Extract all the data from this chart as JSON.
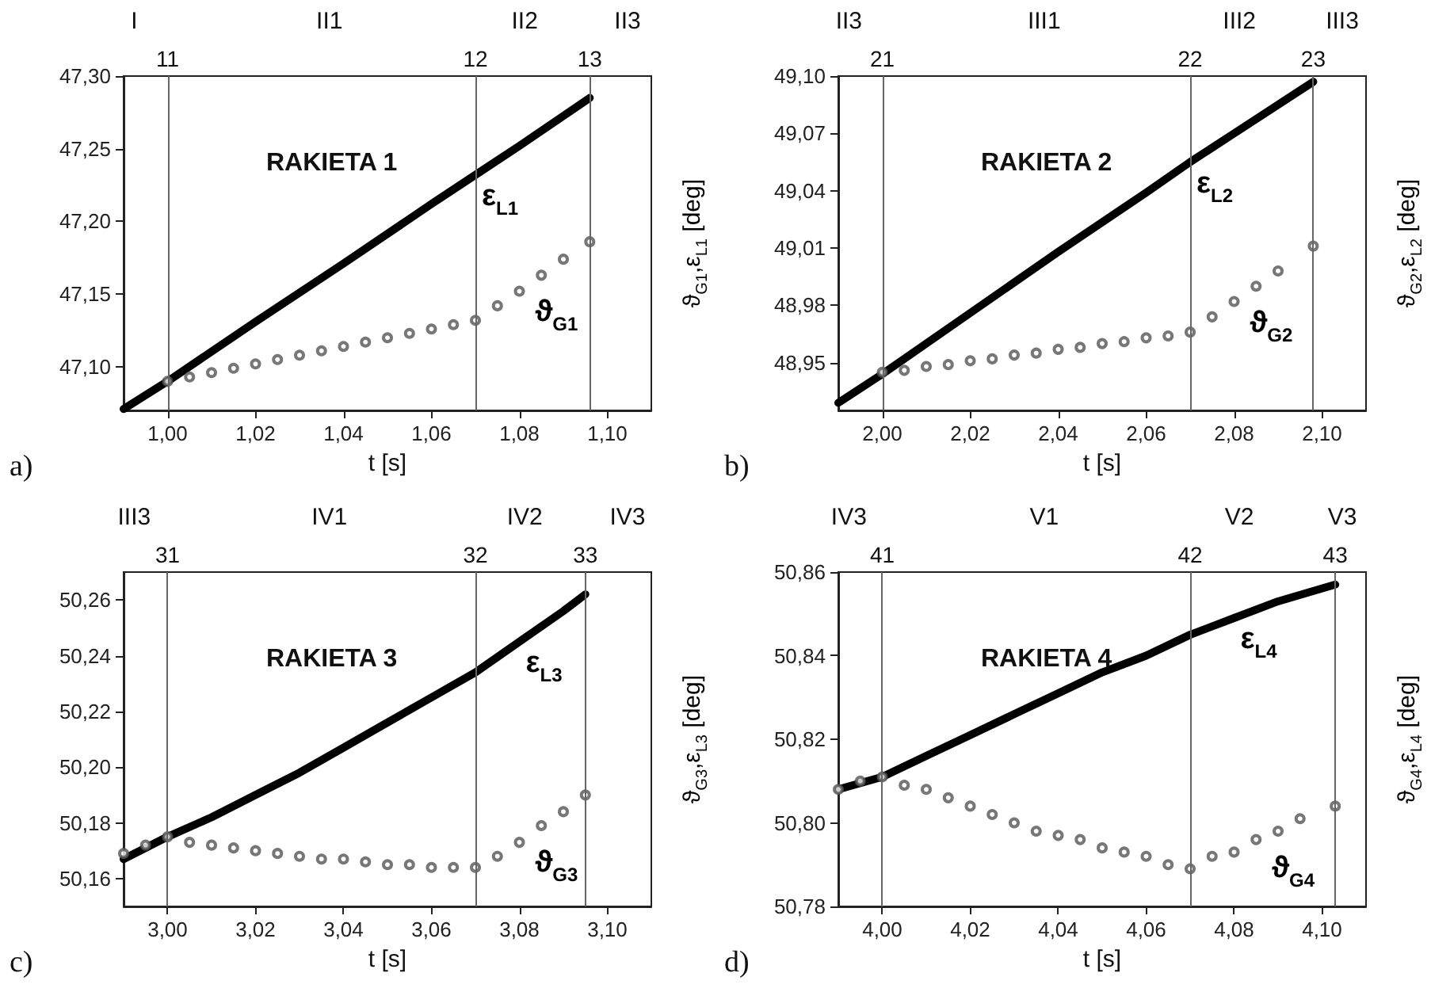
{
  "chart_data": [
    {
      "type": "line",
      "title": "RAKIETA 1",
      "xlabel": "t [s]",
      "ylabel": "ϑ$_{G1}$,ε$_{L1}$ [deg]",
      "xlim": [
        0.99,
        1.11
      ],
      "xticks": [
        {
          "value": 1.0,
          "label": "1,00"
        },
        {
          "value": 1.02,
          "label": "1,02"
        },
        {
          "value": 1.04,
          "label": "1,04"
        },
        {
          "value": 1.06,
          "label": "1,06"
        },
        {
          "value": 1.08,
          "label": "1,08"
        },
        {
          "value": 1.1,
          "label": "1,10"
        }
      ],
      "ylim": [
        47.07,
        47.3
      ],
      "yticks": [
        {
          "value": 47.1,
          "label": "47,10"
        },
        {
          "value": 47.15,
          "label": "47,15"
        },
        {
          "value": 47.2,
          "label": "47,20"
        },
        {
          "value": 47.25,
          "label": "47,25"
        },
        {
          "value": 47.3,
          "label": "47,30"
        }
      ],
      "ref_lines": [
        {
          "axis": "x",
          "value": 1.0
        },
        {
          "axis": "x",
          "value": 1.07
        },
        {
          "axis": "x",
          "value": 1.096
        }
      ],
      "annotations": [
        "a)",
        "I",
        "II1",
        "II2",
        "II3",
        "11",
        "12",
        "13"
      ],
      "series": [
        {
          "name": "ε$_{L1}$",
          "marker": "none",
          "color": "#000000",
          "x": [
            0.99,
            1.0,
            1.02,
            1.04,
            1.06,
            1.07,
            1.08,
            1.096
          ],
          "values": [
            47.071,
            47.09,
            47.131,
            47.171,
            47.212,
            47.232,
            47.252,
            47.285
          ]
        },
        {
          "name": "ϑ$_{G1}$",
          "type": "scatter",
          "marker": "circle",
          "color": "#555555",
          "x": [
            1.0,
            1.005,
            1.01,
            1.015,
            1.02,
            1.025,
            1.03,
            1.035,
            1.04,
            1.045,
            1.05,
            1.055,
            1.06,
            1.065,
            1.07,
            1.075,
            1.08,
            1.085,
            1.09,
            1.096
          ],
          "values": [
            47.09,
            47.093,
            47.096,
            47.099,
            47.102,
            47.105,
            47.108,
            47.111,
            47.114,
            47.117,
            47.12,
            47.123,
            47.126,
            47.129,
            47.132,
            47.142,
            47.152,
            47.163,
            47.174,
            47.186
          ]
        }
      ]
    },
    {
      "type": "line",
      "title": "RAKIETA 2",
      "xlabel": "t [s]",
      "ylabel": "ϑ$_{G2}$,ε$_{L2}$ [deg]",
      "xlim": [
        1.99,
        2.11
      ],
      "xticks": [
        {
          "value": 2.0,
          "label": "2,00"
        },
        {
          "value": 2.02,
          "label": "2,02"
        },
        {
          "value": 2.04,
          "label": "2,04"
        },
        {
          "value": 2.06,
          "label": "2,06"
        },
        {
          "value": 2.08,
          "label": "2,08"
        },
        {
          "value": 2.1,
          "label": "2,10"
        }
      ],
      "ylim": [
        48.925,
        49.1
      ],
      "yticks": [
        {
          "value": 48.95,
          "label": "48,95"
        },
        {
          "value": 48.98,
          "label": "48,98"
        },
        {
          "value": 49.01,
          "label": "49,01"
        },
        {
          "value": 49.04,
          "label": "49,04"
        },
        {
          "value": 49.07,
          "label": "49,07"
        },
        {
          "value": 49.1,
          "label": "49,10"
        }
      ],
      "ref_lines": [
        {
          "axis": "x",
          "value": 2.0
        },
        {
          "axis": "x",
          "value": 2.07
        },
        {
          "axis": "x",
          "value": 2.098
        }
      ],
      "annotations": [
        "b)",
        "II3",
        "III1",
        "III2",
        "III3",
        "21",
        "22",
        "23"
      ],
      "series": [
        {
          "name": "ε$_{L2}$",
          "marker": "none",
          "color": "#000000",
          "x": [
            1.99,
            2.0,
            2.02,
            2.04,
            2.06,
            2.07,
            2.08,
            2.098
          ],
          "values": [
            48.929,
            48.944,
            48.976,
            49.008,
            49.039,
            49.055,
            49.07,
            49.097
          ]
        },
        {
          "name": "ϑ$_{G2}$",
          "type": "scatter",
          "marker": "circle",
          "color": "#555555",
          "x": [
            2.0,
            2.005,
            2.01,
            2.015,
            2.02,
            2.025,
            2.03,
            2.035,
            2.04,
            2.045,
            2.05,
            2.055,
            2.06,
            2.065,
            2.07,
            2.075,
            2.08,
            2.085,
            2.09,
            2.098
          ],
          "values": [
            48.945,
            48.946,
            48.948,
            48.949,
            48.951,
            48.952,
            48.954,
            48.955,
            48.957,
            48.958,
            48.96,
            48.961,
            48.963,
            48.964,
            48.966,
            48.974,
            48.982,
            48.99,
            48.998,
            49.011
          ]
        }
      ]
    },
    {
      "type": "line",
      "title": "RAKIETA 3",
      "xlabel": "t [s]",
      "ylabel": "ϑ$_{G3}$,ε$_{L3}$ [deg]",
      "xlim": [
        2.99,
        3.11
      ],
      "xticks": [
        {
          "value": 3.0,
          "label": "3,00"
        },
        {
          "value": 3.02,
          "label": "3,02"
        },
        {
          "value": 3.04,
          "label": "3,04"
        },
        {
          "value": 3.06,
          "label": "3,06"
        },
        {
          "value": 3.08,
          "label": "3,08"
        },
        {
          "value": 3.1,
          "label": "3,10"
        }
      ],
      "ylim": [
        50.15,
        50.27
      ],
      "yticks": [
        {
          "value": 50.16,
          "label": "50,16"
        },
        {
          "value": 50.18,
          "label": "50,18"
        },
        {
          "value": 50.2,
          "label": "50,20"
        },
        {
          "value": 50.22,
          "label": "50,22"
        },
        {
          "value": 50.24,
          "label": "50,24"
        },
        {
          "value": 50.26,
          "label": "50,26"
        }
      ],
      "ref_lines": [
        {
          "axis": "x",
          "value": 3.0
        },
        {
          "axis": "x",
          "value": 3.07
        },
        {
          "axis": "x",
          "value": 3.095
        }
      ],
      "annotations": [
        "c)",
        "III3",
        "IV1",
        "IV2",
        "IV3",
        "31",
        "32",
        "33"
      ],
      "series": [
        {
          "name": "ε$_{L3}$",
          "marker": "none",
          "color": "#000000",
          "x": [
            2.99,
            3.0,
            3.01,
            3.02,
            3.03,
            3.04,
            3.05,
            3.06,
            3.07,
            3.08,
            3.09,
            3.095
          ],
          "values": [
            50.167,
            50.175,
            50.182,
            50.19,
            50.198,
            50.207,
            50.216,
            50.225,
            50.234,
            50.245,
            50.256,
            50.262
          ]
        },
        {
          "name": "ϑ$_{G3}$",
          "type": "scatter",
          "marker": "circle",
          "color": "#555555",
          "x": [
            2.99,
            2.995,
            3.0,
            3.005,
            3.01,
            3.015,
            3.02,
            3.025,
            3.03,
            3.035,
            3.04,
            3.045,
            3.05,
            3.055,
            3.06,
            3.065,
            3.07,
            3.075,
            3.08,
            3.085,
            3.09,
            3.095
          ],
          "values": [
            50.169,
            50.172,
            50.175,
            50.173,
            50.172,
            50.171,
            50.17,
            50.169,
            50.168,
            50.167,
            50.167,
            50.166,
            50.165,
            50.165,
            50.164,
            50.164,
            50.164,
            50.168,
            50.173,
            50.179,
            50.184,
            50.19
          ]
        }
      ]
    },
    {
      "type": "line",
      "title": "RAKIETA 4",
      "xlabel": "t [s]",
      "ylabel": "ϑ$_{G4}$,ε$_{L4}$ [deg]",
      "xlim": [
        3.99,
        4.11
      ],
      "xticks": [
        {
          "value": 4.0,
          "label": "4,00"
        },
        {
          "value": 4.02,
          "label": "4,02"
        },
        {
          "value": 4.04,
          "label": "4,04"
        },
        {
          "value": 4.06,
          "label": "4,06"
        },
        {
          "value": 4.08,
          "label": "4,08"
        },
        {
          "value": 4.1,
          "label": "4,10"
        }
      ],
      "ylim": [
        50.78,
        50.86
      ],
      "yticks": [
        {
          "value": 50.78,
          "label": "50,78"
        },
        {
          "value": 50.8,
          "label": "50,80"
        },
        {
          "value": 50.82,
          "label": "50,82"
        },
        {
          "value": 50.84,
          "label": "50,84"
        },
        {
          "value": 50.86,
          "label": "50,86"
        }
      ],
      "ref_lines": [
        {
          "axis": "x",
          "value": 4.0
        },
        {
          "axis": "x",
          "value": 4.07
        },
        {
          "axis": "x",
          "value": 4.103
        }
      ],
      "annotations": [
        "d)",
        "IV3",
        "V1",
        "V2",
        "V3",
        "41",
        "42",
        "43"
      ],
      "series": [
        {
          "name": "ε$_{L4}$",
          "marker": "none",
          "color": "#000000",
          "x": [
            3.99,
            4.0,
            4.01,
            4.02,
            4.03,
            4.04,
            4.05,
            4.06,
            4.07,
            4.08,
            4.09,
            4.103
          ],
          "values": [
            50.808,
            50.811,
            50.816,
            50.821,
            50.826,
            50.831,
            50.836,
            50.84,
            50.845,
            50.849,
            50.853,
            50.857
          ]
        },
        {
          "name": "ϑ$_{G4}$",
          "type": "scatter",
          "marker": "circle",
          "color": "#555555",
          "x": [
            3.99,
            3.995,
            4.0,
            4.005,
            4.01,
            4.015,
            4.02,
            4.025,
            4.03,
            4.035,
            4.04,
            4.045,
            4.05,
            4.055,
            4.06,
            4.065,
            4.07,
            4.075,
            4.08,
            4.085,
            4.09,
            4.095,
            4.103
          ],
          "values": [
            50.808,
            50.81,
            50.811,
            50.809,
            50.808,
            50.806,
            50.804,
            50.802,
            50.8,
            50.798,
            50.797,
            50.796,
            50.794,
            50.793,
            50.792,
            50.79,
            50.789,
            50.792,
            50.793,
            50.796,
            50.798,
            50.801,
            50.804
          ]
        }
      ]
    }
  ]
}
